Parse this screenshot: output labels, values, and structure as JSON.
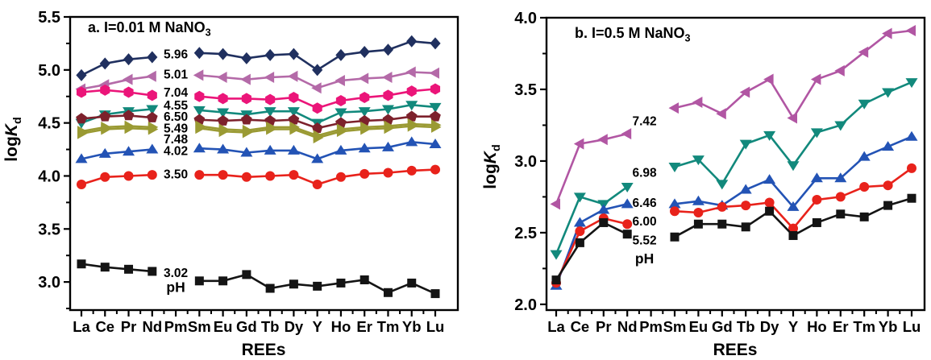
{
  "figure": {
    "background": "#ffffff",
    "axis_color": "#000000"
  },
  "chart_data": [
    {
      "id": "a",
      "type": "line",
      "title": {
        "text": "a. I=0.01 M NaNO",
        "sub": "3"
      },
      "ylabel": {
        "normal": "log",
        "italic": "K",
        "sub": "d"
      },
      "xlabel": "REEs",
      "categories": [
        "La",
        "Ce",
        "Pr",
        "Nd",
        "Pm",
        "Sm",
        "Eu",
        "Gd",
        "Tb",
        "Dy",
        "Y",
        "Ho",
        "Er",
        "Tm",
        "Yb",
        "Lu"
      ],
      "no_data_category": "Pm",
      "ylim": [
        2.735,
        5.5
      ],
      "yticks": {
        "major": [
          3.0,
          3.5,
          4.0,
          4.5,
          5.0,
          5.5
        ],
        "minor": [
          2.75,
          3.25,
          3.75,
          4.25,
          4.75,
          5.25
        ]
      },
      "grid": false,
      "legend": "pH labels placed in Pm gap",
      "ph_annotation": {
        "text": "pH",
        "y": 2.95
      },
      "series": [
        {
          "ph": "5.96",
          "marker": "diamond",
          "color": "#20305f",
          "label_y": 5.15,
          "values": [
            4.95,
            5.06,
            5.1,
            5.12,
            null,
            5.16,
            5.15,
            5.11,
            5.14,
            5.15,
            5.0,
            5.14,
            5.17,
            5.19,
            5.27,
            5.25
          ]
        },
        {
          "ph": "5.01",
          "marker": "triangle-left",
          "color": "#b46aa8",
          "label_y": 4.96,
          "values": [
            4.82,
            4.86,
            4.91,
            4.94,
            null,
            4.95,
            4.93,
            4.91,
            4.93,
            4.94,
            4.83,
            4.9,
            4.92,
            4.93,
            4.98,
            4.97
          ]
        },
        {
          "ph": "7.04",
          "marker": "hexagon",
          "color": "#eb1579",
          "label_y": 4.79,
          "values": [
            4.79,
            4.81,
            4.79,
            4.76,
            null,
            4.75,
            4.73,
            4.73,
            4.72,
            4.74,
            4.64,
            4.71,
            4.74,
            4.76,
            4.8,
            4.82
          ]
        },
        {
          "ph": "4.55",
          "marker": "triangle-down",
          "color": "#12897c",
          "label_y": 4.67,
          "values": [
            4.5,
            4.58,
            4.61,
            4.63,
            null,
            4.62,
            4.6,
            4.58,
            4.61,
            4.61,
            4.5,
            4.6,
            4.61,
            4.63,
            4.67,
            4.65
          ]
        },
        {
          "ph": "6.50",
          "marker": "pentagon",
          "color": "#7d212c",
          "label_y": 4.56,
          "values": [
            4.54,
            4.56,
            4.57,
            4.55,
            null,
            4.53,
            4.52,
            4.53,
            4.52,
            4.53,
            4.45,
            4.5,
            4.52,
            4.53,
            4.56,
            4.56
          ]
        },
        {
          "ph": "7.48",
          "marker": "triangle-right",
          "color": "#9a9a33",
          "label_y": 4.35,
          "values": [
            4.4,
            4.44,
            4.45,
            4.44,
            null,
            4.45,
            4.42,
            4.41,
            4.44,
            4.44,
            4.36,
            4.42,
            4.44,
            4.45,
            4.47,
            4.46
          ]
        },
        {
          "ph": "5.49",
          "marker": "triangle-right",
          "color": "#9a9a33",
          "label_y": 4.45,
          "values": [
            4.42,
            4.46,
            4.47,
            4.46,
            null,
            4.47,
            4.44,
            4.43,
            4.46,
            4.46,
            4.38,
            4.44,
            4.46,
            4.47,
            4.49,
            4.48
          ]
        },
        {
          "ph": "4.02",
          "marker": "triangle-up",
          "color": "#2353b5",
          "label_y": 4.24,
          "values": [
            4.16,
            4.21,
            4.23,
            4.25,
            null,
            4.26,
            4.25,
            4.22,
            4.24,
            4.24,
            4.16,
            4.24,
            4.26,
            4.27,
            4.32,
            4.3
          ]
        },
        {
          "ph": "3.50",
          "marker": "circle",
          "color": "#e8221b",
          "label_y": 4.02,
          "values": [
            3.92,
            3.99,
            4.0,
            4.01,
            null,
            4.01,
            4.01,
            3.99,
            4.0,
            4.01,
            3.92,
            3.99,
            4.02,
            4.03,
            4.05,
            4.06
          ]
        },
        {
          "ph": "3.02",
          "marker": "square",
          "color": "#141414",
          "label_y": 3.09,
          "values": [
            3.17,
            3.14,
            3.12,
            3.1,
            null,
            3.01,
            3.01,
            3.07,
            2.94,
            2.98,
            2.96,
            2.99,
            3.02,
            2.9,
            2.99,
            2.89
          ]
        }
      ]
    },
    {
      "id": "b",
      "type": "line",
      "title": {
        "text": "b. I=0.5 M NaNO",
        "sub": "3"
      },
      "ylabel": {
        "normal": "log",
        "italic": "K",
        "sub": "d"
      },
      "xlabel": "REEs",
      "categories": [
        "La",
        "Ce",
        "Pr",
        "Nd",
        "Pm",
        "Sm",
        "Eu",
        "Gd",
        "Tb",
        "Dy",
        "Y",
        "Ho",
        "Er",
        "Tm",
        "Yb",
        "Lu"
      ],
      "no_data_category": "Pm",
      "ylim": [
        1.96,
        4.0
      ],
      "yticks": {
        "major": [
          2.0,
          2.5,
          3.0,
          3.5,
          4.0
        ],
        "minor": [
          2.25,
          2.75,
          3.25,
          3.75
        ]
      },
      "grid": false,
      "legend": "pH labels placed in Pm gap",
      "ph_annotation": {
        "text": "pH",
        "y": 2.32
      },
      "series": [
        {
          "ph": "7.42",
          "marker": "triangle-left",
          "color": "#b156a3",
          "label_y": 3.28,
          "values": [
            2.7,
            3.12,
            3.15,
            3.19,
            null,
            3.37,
            3.41,
            3.33,
            3.48,
            3.57,
            3.3,
            3.57,
            3.63,
            3.76,
            3.89,
            3.91
          ]
        },
        {
          "ph": "6.98",
          "marker": "triangle-down",
          "color": "#12897c",
          "label_y": 2.92,
          "values": [
            2.35,
            2.75,
            2.7,
            2.82,
            null,
            2.96,
            3.01,
            2.84,
            3.12,
            3.18,
            2.97,
            3.2,
            3.25,
            3.4,
            3.48,
            3.55
          ]
        },
        {
          "ph": "6.46",
          "marker": "triangle-up",
          "color": "#2353b5",
          "label_y": 2.71,
          "values": [
            2.13,
            2.57,
            2.66,
            2.7,
            null,
            2.7,
            2.72,
            2.69,
            2.8,
            2.87,
            2.68,
            2.88,
            2.88,
            3.03,
            3.1,
            3.17
          ]
        },
        {
          "ph": "6.00",
          "marker": "circle",
          "color": "#e8221b",
          "label_y": 2.58,
          "values": [
            2.15,
            2.51,
            2.6,
            2.56,
            null,
            2.65,
            2.64,
            2.68,
            2.69,
            2.71,
            2.53,
            2.73,
            2.75,
            2.82,
            2.83,
            2.95
          ]
        },
        {
          "ph": "5.52",
          "marker": "square",
          "color": "#141414",
          "label_y": 2.45,
          "values": [
            2.17,
            2.43,
            2.57,
            2.49,
            null,
            2.47,
            2.56,
            2.56,
            2.54,
            2.65,
            2.48,
            2.57,
            2.63,
            2.61,
            2.69,
            2.74
          ]
        }
      ]
    }
  ]
}
